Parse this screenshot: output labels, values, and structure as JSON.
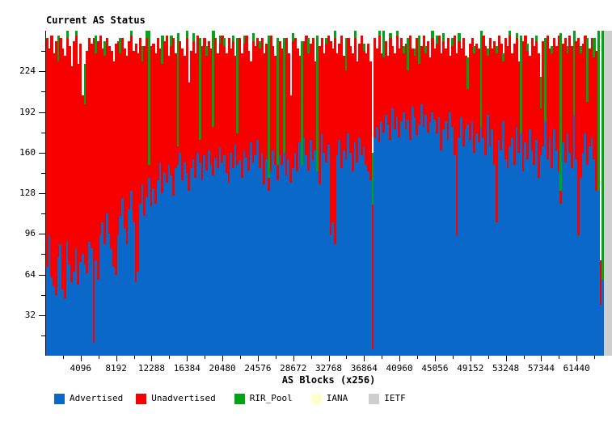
{
  "title": "Current AS Status",
  "x_axis": {
    "label": "AS Blocks (x256)",
    "range": [
      0,
      65536
    ],
    "major_tick_values": [
      4096,
      8192,
      12288,
      16384,
      20480,
      24576,
      28672,
      32768,
      36864,
      40960,
      45056,
      49152,
      53248,
      57344,
      61440
    ],
    "minor_tick_step": 2048
  },
  "y_axis": {
    "range": [
      0,
      256
    ],
    "major_tick_values": [
      32,
      64,
      96,
      128,
      160,
      192,
      224
    ],
    "minor_tick_step": 16
  },
  "legend": [
    {
      "label": "Advertised",
      "color": "#0A68C8"
    },
    {
      "label": "Unadvertised",
      "color": "#F80000"
    },
    {
      "label": "RIR_Pool",
      "color": "#00A414"
    },
    {
      "label": "IANA",
      "color": "#FFFFC8"
    },
    {
      "label": "IETF",
      "color": "#CFCFCF"
    }
  ],
  "chart_data": {
    "type": "bar",
    "stacked": true,
    "title": "Current AS Status",
    "xlabel": "AS Blocks (x256)",
    "ylabel": "",
    "xlim": [
      0,
      65536
    ],
    "ylim": [
      0,
      256
    ],
    "grid": false,
    "legend_position": "bottom",
    "n_blocks": 256,
    "x_unit": "each bar = one block of 256 AS numbers",
    "series_note": "Values are cumulative stack tops per block (0-256): advertised_top, then unadvertised_top >= advertised_top, then rir_pool_top >= unadvertised_top. Segment height = difference of successive tops. IETF blocks are full-height columns; no IANA blocks are visible.",
    "series": {
      "advertised_top": [
        70,
        95,
        62,
        55,
        48,
        78,
        88,
        52,
        45,
        90,
        72,
        58,
        66,
        85,
        56,
        74,
        80,
        72,
        65,
        90,
        85,
        10,
        75,
        60,
        95,
        105,
        88,
        112,
        96,
        84,
        70,
        64,
        95,
        110,
        124,
        100,
        88,
        115,
        130,
        105,
        58,
        66,
        120,
        135,
        110,
        125,
        140,
        118,
        132,
        120,
        138,
        152,
        128,
        144,
        136,
        150,
        142,
        126,
        148,
        150,
        160,
        138,
        152,
        144,
        130,
        148,
        155,
        140,
        160,
        152,
        138,
        158,
        146,
        162,
        150,
        142,
        156,
        148,
        164,
        152,
        158,
        144,
        136,
        160,
        148,
        166,
        150,
        154,
        140,
        162,
        156,
        146,
        168,
        152,
        158,
        170,
        148,
        160,
        135,
        155,
        130,
        145,
        162,
        150,
        138,
        158,
        150,
        165,
        142,
        155,
        136,
        148,
        160,
        145,
        168,
        150,
        172,
        158,
        146,
        170,
        154,
        162,
        148,
        135,
        175,
        160,
        152,
        166,
        95,
        105,
        88,
        158,
        170,
        148,
        162,
        155,
        175,
        160,
        145,
        168,
        152,
        172,
        158,
        165,
        150,
        145,
        138,
        5,
        172,
        180,
        168,
        185,
        176,
        190,
        182,
        170,
        195,
        178,
        188,
        172,
        185,
        192,
        178,
        186,
        170,
        196,
        188,
        174,
        182,
        198,
        180,
        190,
        176,
        184,
        192,
        186,
        175,
        188,
        162,
        178,
        185,
        170,
        192,
        180,
        158,
        95,
        172,
        188,
        165,
        178,
        182,
        170,
        185,
        160,
        175,
        168,
        180,
        172,
        158,
        190,
        165,
        178,
        150,
        105,
        170,
        162,
        185,
        155,
        148,
        165,
        172,
        150,
        180,
        160,
        175,
        145,
        168,
        155,
        178,
        162,
        150,
        170,
        140,
        158,
        165,
        185,
        155,
        172,
        148,
        178,
        162,
        145,
        120,
        168,
        152,
        175,
        160,
        148,
        190,
        155,
        95,
        140,
        160,
        175,
        150,
        165,
        172,
        155,
        130,
        130,
        40,
        60,
        0,
        0,
        0,
        0
      ],
      "unadvertised_top": [
        250,
        242,
        252,
        238,
        248,
        232,
        250,
        242,
        236,
        250,
        244,
        228,
        248,
        252,
        230,
        246,
        205,
        198,
        240,
        250,
        246,
        250,
        238,
        248,
        252,
        242,
        236,
        250,
        244,
        240,
        232,
        246,
        248,
        238,
        250,
        242,
        236,
        248,
        252,
        240,
        246,
        238,
        250,
        232,
        244,
        250,
        150,
        244,
        246,
        238,
        250,
        242,
        230,
        248,
        252,
        236,
        244,
        250,
        238,
        165,
        248,
        242,
        236,
        250,
        215,
        240,
        248,
        238,
        252,
        170,
        244,
        250,
        236,
        248,
        242,
        180,
        250,
        238,
        246,
        252,
        244,
        238,
        250,
        242,
        248,
        236,
        175,
        250,
        238,
        246,
        252,
        240,
        232,
        248,
        244,
        250,
        242,
        250,
        238,
        246,
        140,
        252,
        244,
        236,
        150,
        248,
        242,
        160,
        250,
        238,
        205,
        248,
        250,
        242,
        236,
        150,
        248,
        252,
        238,
        246,
        250,
        232,
        145,
        244,
        250,
        238,
        246,
        252,
        248,
        242,
        250,
        238,
        246,
        252,
        236,
        225,
        250,
        244,
        238,
        250,
        232,
        246,
        252,
        240,
        238,
        246,
        232,
        119,
        250,
        242,
        252,
        238,
        235,
        248,
        236,
        250,
        244,
        238,
        252,
        242,
        250,
        238,
        246,
        225,
        252,
        242,
        236,
        250,
        230,
        244,
        252,
        238,
        248,
        235,
        250,
        242,
        246,
        252,
        238,
        248,
        242,
        250,
        236,
        244,
        252,
        238,
        248,
        242,
        250,
        236,
        210,
        246,
        250,
        238,
        246,
        242,
        180,
        252,
        244,
        236,
        250,
        242,
        248,
        238,
        252,
        246,
        232,
        250,
        244,
        252,
        238,
        246,
        250,
        232,
        175,
        248,
        252,
        240,
        236,
        250,
        244,
        248,
        238,
        195,
        248,
        185,
        252,
        242,
        238,
        250,
        244,
        252,
        130,
        246,
        250,
        238,
        252,
        244,
        190,
        248,
        250,
        238,
        246,
        252,
        200,
        242,
        250,
        235,
        240,
        130,
        75,
        60,
        0,
        0,
        0,
        0
      ],
      "rir_pool_top": [
        250,
        242,
        252,
        238,
        248,
        252,
        250,
        242,
        236,
        256,
        244,
        228,
        248,
        256,
        230,
        246,
        205,
        230,
        240,
        250,
        246,
        250,
        252,
        248,
        252,
        242,
        248,
        250,
        244,
        240,
        232,
        246,
        248,
        250,
        250,
        242,
        236,
        248,
        256,
        240,
        246,
        238,
        250,
        244,
        244,
        256,
        256,
        244,
        246,
        238,
        250,
        242,
        252,
        248,
        252,
        236,
        252,
        250,
        238,
        254,
        248,
        242,
        236,
        256,
        215,
        240,
        254,
        238,
        252,
        250,
        244,
        250,
        244,
        248,
        242,
        256,
        250,
        238,
        252,
        252,
        250,
        238,
        250,
        242,
        252,
        236,
        250,
        250,
        238,
        252,
        252,
        240,
        232,
        254,
        244,
        250,
        248,
        250,
        238,
        246,
        252,
        252,
        244,
        236,
        250,
        248,
        242,
        250,
        250,
        238,
        205,
        254,
        250,
        242,
        236,
        248,
        248,
        252,
        250,
        246,
        250,
        232,
        252,
        244,
        250,
        238,
        250,
        252,
        248,
        242,
        256,
        238,
        246,
        252,
        236,
        250,
        250,
        244,
        238,
        256,
        232,
        246,
        252,
        246,
        238,
        246,
        232,
        160,
        250,
        242,
        256,
        238,
        256,
        248,
        236,
        254,
        244,
        238,
        256,
        242,
        250,
        244,
        246,
        250,
        252,
        242,
        242,
        250,
        252,
        244,
        252,
        244,
        248,
        235,
        256,
        242,
        252,
        252,
        238,
        254,
        242,
        250,
        236,
        250,
        252,
        238,
        254,
        242,
        250,
        236,
        235,
        246,
        250,
        244,
        246,
        242,
        256,
        252,
        244,
        242,
        250,
        242,
        248,
        244,
        252,
        246,
        238,
        250,
        244,
        256,
        238,
        246,
        254,
        232,
        252,
        248,
        252,
        246,
        236,
        250,
        244,
        252,
        238,
        220,
        248,
        250,
        252,
        242,
        244,
        250,
        244,
        252,
        254,
        246,
        250,
        244,
        252,
        244,
        256,
        248,
        250,
        244,
        246,
        252,
        250,
        242,
        250,
        250,
        240,
        256,
        75,
        256,
        0,
        0,
        0,
        0
      ]
    },
    "ietf_blocks": [
      252,
      253,
      254,
      255
    ],
    "ietf_value": 256,
    "iana_blocks": []
  }
}
